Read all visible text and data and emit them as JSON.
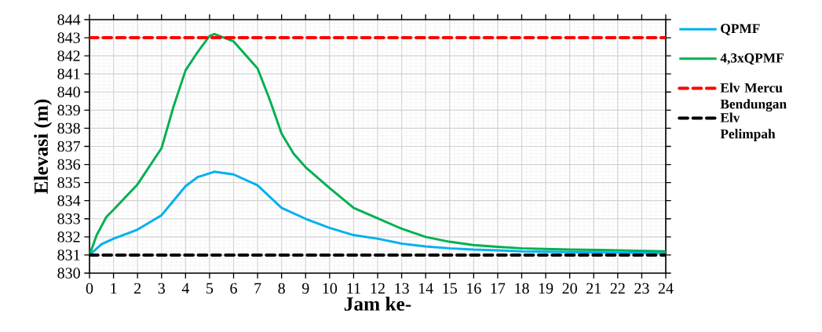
{
  "chart_data": {
    "type": "line",
    "xlabel": "Jam ke-",
    "ylabel": "Elevasi (m)",
    "xlim": [
      0,
      24
    ],
    "ylim": [
      830,
      844
    ],
    "xticks": [
      0,
      1,
      2,
      3,
      4,
      5,
      6,
      7,
      8,
      9,
      10,
      11,
      12,
      13,
      14,
      15,
      16,
      17,
      18,
      19,
      20,
      21,
      22,
      23,
      24
    ],
    "yticks": [
      830,
      831,
      832,
      833,
      834,
      835,
      836,
      837,
      838,
      839,
      840,
      841,
      842,
      843,
      844
    ],
    "grid": true,
    "legend": "right",
    "marker": "none",
    "line_style": "solid",
    "series": [
      {
        "name": "QPMF",
        "color": "#00b0f0",
        "x": [
          0,
          0.5,
          1,
          2,
          3,
          3.5,
          4,
          4.5,
          5.2,
          6,
          7,
          8,
          9,
          10,
          11,
          12,
          13,
          14,
          15,
          16,
          17,
          18,
          20,
          24
        ],
        "values": [
          831.0,
          831.6,
          831.9,
          832.4,
          833.2,
          834.0,
          834.8,
          835.3,
          835.6,
          835.45,
          834.85,
          833.6,
          833.0,
          832.5,
          832.1,
          831.9,
          831.63,
          831.47,
          831.37,
          831.3,
          831.26,
          831.2,
          831.16,
          831.1
        ]
      },
      {
        "name": "4,3xQPMF",
        "color": "#00b050",
        "x": [
          0,
          0.3,
          0.7,
          1,
          2,
          3,
          3.5,
          4,
          4.5,
          5,
          5.2,
          6,
          7,
          7.5,
          8,
          8.5,
          9,
          10,
          11,
          12,
          13,
          14,
          15,
          16,
          17,
          18,
          19,
          20,
          22,
          24
        ],
        "values": [
          831.0,
          832.1,
          833.1,
          833.5,
          834.9,
          836.9,
          839.2,
          841.2,
          842.2,
          843.1,
          843.2,
          842.8,
          841.3,
          839.6,
          837.7,
          836.6,
          835.85,
          834.7,
          833.6,
          833.03,
          832.45,
          832.0,
          831.73,
          831.55,
          831.45,
          831.37,
          831.33,
          831.3,
          831.26,
          831.2
        ]
      }
    ],
    "ref_lines": [
      {
        "axis": "y",
        "value": 843,
        "label": "Elv Mercu Bendungan",
        "color": "#ff0000",
        "line_style": "dashed"
      },
      {
        "axis": "y",
        "value": 831,
        "label": "Elv Pelimpah",
        "color": "#000000",
        "line_style": "dashed"
      }
    ]
  }
}
